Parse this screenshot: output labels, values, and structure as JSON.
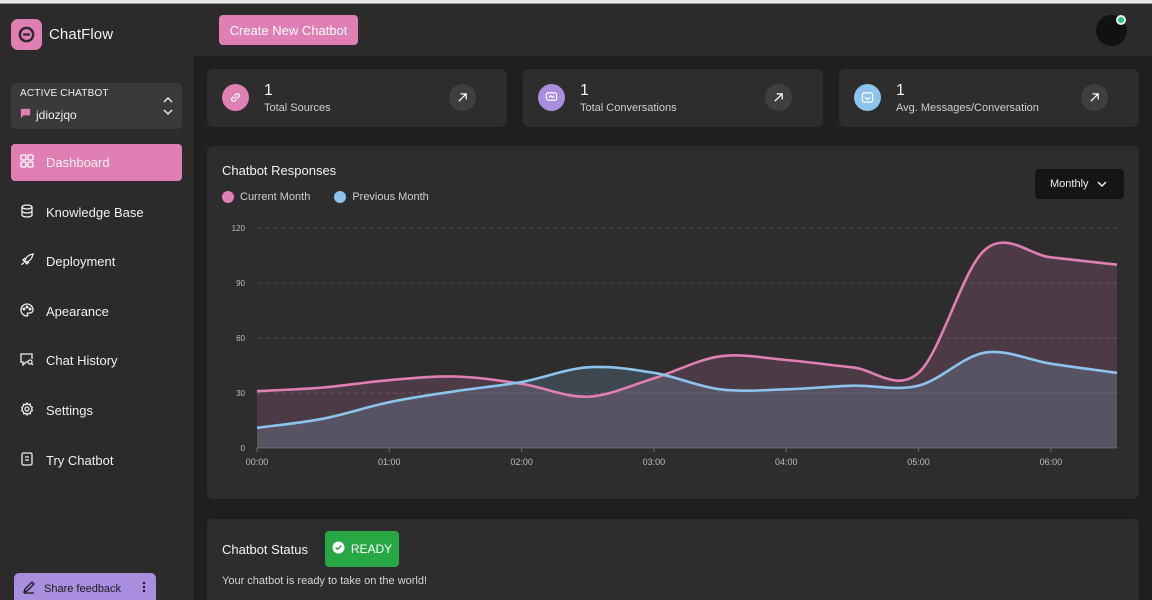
{
  "brand": {
    "name": "ChatFlow",
    "logo_icon": "chat-logo-icon"
  },
  "active_chatbot": {
    "label": "ACTIVE CHATBOT",
    "name": "jdiozjqo"
  },
  "sidebar": {
    "items": [
      {
        "label": "Dashboard",
        "icon": "grid-icon",
        "active": true
      },
      {
        "label": "Knowledge Base",
        "icon": "database-icon"
      },
      {
        "label": "Deployment",
        "icon": "rocket-icon"
      },
      {
        "label": "Apearance",
        "icon": "palette-icon"
      },
      {
        "label": "Chat History",
        "icon": "chat-search-icon"
      },
      {
        "label": "Settings",
        "icon": "gear-icon"
      },
      {
        "label": "Try Chatbot",
        "icon": "try-chat-icon"
      }
    ],
    "feedback_label": "Share feedback"
  },
  "header": {
    "create_button": "Create New Chatbot"
  },
  "stats": [
    {
      "value": "1",
      "label": "Total Sources",
      "icon": "link-icon",
      "color": "#e07fb3"
    },
    {
      "value": "1",
      "label": "Total Conversations",
      "icon": "chat-bubble-icon",
      "color": "#a98ee0"
    },
    {
      "value": "1",
      "label": "Avg. Messages/Conversation",
      "icon": "inbox-icon",
      "color": "#8cc4ee"
    }
  ],
  "colors": {
    "accent": "#e07fb3",
    "current": "#e07fb3",
    "previous": "#8cc4ee",
    "ready": "#28a745"
  },
  "chart": {
    "dropdown": "Monthly"
  },
  "chart_data": {
    "type": "area",
    "title": "Chatbot Responses",
    "x": [
      "00:00",
      "00:30",
      "01:00",
      "01:30",
      "02:00",
      "02:30",
      "03:00",
      "03:30",
      "04:00",
      "04:30",
      "05:00",
      "05:30",
      "06:00",
      "06:30"
    ],
    "xticks": [
      "00:00",
      "01:00",
      "02:00",
      "03:00",
      "04:00",
      "05:00",
      "06:00"
    ],
    "yticks": [
      0,
      30,
      60,
      90,
      120
    ],
    "ylim": [
      0,
      120
    ],
    "legend_position": "top-left",
    "series": [
      {
        "name": "Current Month",
        "color": "#e07fb3",
        "values": [
          31,
          33,
          37,
          39,
          35,
          28,
          38,
          50,
          48,
          44,
          41,
          108,
          104,
          100
        ]
      },
      {
        "name": "Previous Month",
        "color": "#8cc4ee",
        "values": [
          11,
          16,
          25,
          31,
          36,
          44,
          41,
          32,
          32,
          34,
          34,
          52,
          46,
          41
        ]
      }
    ]
  },
  "status": {
    "title": "Chatbot Status",
    "badge": "READY",
    "message": "Your chatbot is ready to take on the world!"
  }
}
